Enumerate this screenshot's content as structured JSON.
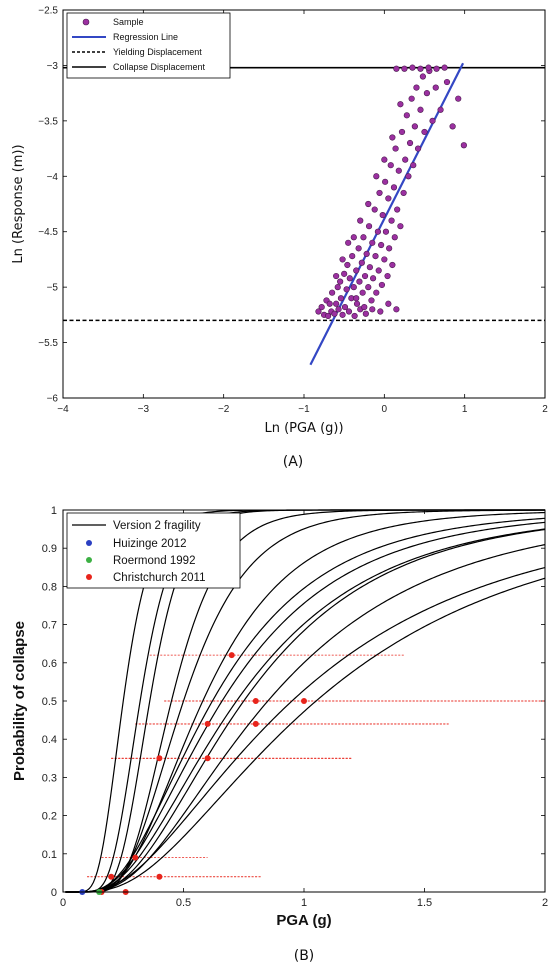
{
  "chart_data": [
    {
      "type": "scatter",
      "panel_label": "(A)",
      "xlabel": "Ln (PGA (g))",
      "ylabel": "Ln (Response (m))",
      "xlim": [
        -4,
        2
      ],
      "ylim": [
        -6,
        -2.5
      ],
      "xticks": [
        -4,
        -3,
        -2,
        -1,
        0,
        1,
        2
      ],
      "yticks": [
        -2.5,
        -3,
        -3.5,
        -4,
        -4.5,
        -5,
        -5.5,
        -6
      ],
      "legend": {
        "position": "top-left",
        "entries": [
          "Sample",
          "Regression Line",
          "Yielding Displacement",
          "Collapse Displacement"
        ]
      },
      "colors": {
        "sample": "#9b30a0",
        "regression": "#3347c4",
        "yield": "#000000",
        "collapse": "#000000"
      },
      "regression_line": {
        "x": [
          -0.92,
          0.98
        ],
        "y": [
          -5.7,
          -2.98
        ]
      },
      "yielding_displacement": -5.3,
      "collapse_displacement": -3.02,
      "samples": [
        [
          -0.82,
          -5.22
        ],
        [
          -0.78,
          -5.18
        ],
        [
          -0.75,
          -5.25
        ],
        [
          -0.72,
          -5.12
        ],
        [
          -0.7,
          -5.26
        ],
        [
          -0.68,
          -5.15
        ],
        [
          -0.66,
          -5.22
        ],
        [
          -0.65,
          -5.05
        ],
        [
          -0.62,
          -5.24
        ],
        [
          -0.6,
          -5.15
        ],
        [
          -0.58,
          -5.0
        ],
        [
          -0.57,
          -5.2
        ],
        [
          -0.55,
          -4.95
        ],
        [
          -0.54,
          -5.1
        ],
        [
          -0.52,
          -5.25
        ],
        [
          -0.5,
          -4.88
        ],
        [
          -0.49,
          -5.18
        ],
        [
          -0.47,
          -5.02
        ],
        [
          -0.46,
          -4.8
        ],
        [
          -0.44,
          -5.22
        ],
        [
          -0.43,
          -4.92
        ],
        [
          -0.41,
          -5.1
        ],
        [
          -0.4,
          -4.72
        ],
        [
          -0.38,
          -5.0
        ],
        [
          -0.37,
          -5.26
        ],
        [
          -0.35,
          -4.85
        ],
        [
          -0.34,
          -5.15
        ],
        [
          -0.32,
          -4.65
        ],
        [
          -0.31,
          -4.95
        ],
        [
          -0.3,
          -5.2
        ],
        [
          -0.28,
          -4.78
        ],
        [
          -0.27,
          -5.05
        ],
        [
          -0.26,
          -4.55
        ],
        [
          -0.24,
          -4.9
        ],
        [
          -0.23,
          -5.24
        ],
        [
          -0.22,
          -4.7
        ],
        [
          -0.2,
          -5.0
        ],
        [
          -0.19,
          -4.45
        ],
        [
          -0.18,
          -4.82
        ],
        [
          -0.16,
          -5.12
        ],
        [
          -0.15,
          -4.6
        ],
        [
          -0.14,
          -4.92
        ],
        [
          -0.12,
          -4.3
        ],
        [
          -0.11,
          -4.72
        ],
        [
          -0.1,
          -5.05
        ],
        [
          -0.08,
          -4.5
        ],
        [
          -0.07,
          -4.85
        ],
        [
          -0.06,
          -4.15
        ],
        [
          -0.04,
          -4.62
        ],
        [
          -0.03,
          -4.98
        ],
        [
          -0.02,
          -4.35
        ],
        [
          0.0,
          -4.75
        ],
        [
          0.01,
          -4.05
        ],
        [
          0.02,
          -4.5
        ],
        [
          0.04,
          -4.9
        ],
        [
          0.05,
          -4.2
        ],
        [
          0.06,
          -4.65
        ],
        [
          0.08,
          -3.9
        ],
        [
          0.09,
          -4.4
        ],
        [
          0.1,
          -4.8
        ],
        [
          0.12,
          -4.1
        ],
        [
          0.13,
          -4.55
        ],
        [
          0.14,
          -3.75
        ],
        [
          0.16,
          -4.3
        ],
        [
          0.18,
          -3.95
        ],
        [
          0.2,
          -4.45
        ],
        [
          0.22,
          -3.6
        ],
        [
          0.24,
          -4.15
        ],
        [
          0.26,
          -3.85
        ],
        [
          0.28,
          -3.45
        ],
        [
          0.3,
          -4.0
        ],
        [
          0.32,
          -3.7
        ],
        [
          0.34,
          -3.3
        ],
        [
          0.36,
          -3.9
        ],
        [
          0.38,
          -3.55
        ],
        [
          0.4,
          -3.2
        ],
        [
          0.42,
          -3.75
        ],
        [
          0.45,
          -3.4
        ],
        [
          0.48,
          -3.1
        ],
        [
          0.5,
          -3.6
        ],
        [
          0.53,
          -3.25
        ],
        [
          0.56,
          -3.05
        ],
        [
          0.6,
          -3.5
        ],
        [
          0.64,
          -3.2
        ],
        [
          0.7,
          -3.4
        ],
        [
          0.78,
          -3.15
        ],
        [
          0.85,
          -3.55
        ],
        [
          0.92,
          -3.3
        ],
        [
          0.99,
          -3.72
        ],
        [
          0.15,
          -3.03
        ],
        [
          0.25,
          -3.03
        ],
        [
          0.35,
          -3.02
        ],
        [
          0.45,
          -3.03
        ],
        [
          0.55,
          -3.02
        ],
        [
          0.65,
          -3.03
        ],
        [
          0.75,
          -3.02
        ],
        [
          -0.35,
          -5.1
        ],
        [
          -0.25,
          -5.18
        ],
        [
          -0.15,
          -5.2
        ],
        [
          -0.05,
          -5.22
        ],
        [
          0.05,
          -5.15
        ],
        [
          0.15,
          -5.2
        ],
        [
          -0.6,
          -4.9
        ],
        [
          -0.45,
          -4.6
        ],
        [
          -0.3,
          -4.4
        ],
        [
          -0.2,
          -4.25
        ],
        [
          -0.1,
          -4.0
        ],
        [
          0.0,
          -3.85
        ],
        [
          0.1,
          -3.65
        ],
        [
          0.2,
          -3.35
        ],
        [
          -0.52,
          -4.75
        ],
        [
          -0.38,
          -4.55
        ]
      ]
    },
    {
      "type": "line",
      "panel_label": "(B)",
      "xlabel": "PGA (g)",
      "ylabel": "Probability of collapse",
      "xlim": [
        0,
        2
      ],
      "ylim": [
        0,
        1
      ],
      "xticks": [
        0,
        0.5,
        1,
        1.5,
        2
      ],
      "yticks": [
        0,
        0.1,
        0.2,
        0.3,
        0.4,
        0.5,
        0.6,
        0.7,
        0.8,
        0.9,
        1
      ],
      "legend": {
        "position": "top-left",
        "entries": [
          "Version 2 fragility",
          "Huizinge 2012",
          "Roermond 1992",
          "Christchurch 2011"
        ]
      },
      "colors": {
        "fragility": "#000000",
        "huizinge": "#2b3fc2",
        "roermond": "#3cb043",
        "christchurch": "#e8241b",
        "range": "#e8241b"
      },
      "fragility_curves": [
        {
          "median": 0.25,
          "beta": 0.35
        },
        {
          "median": 0.32,
          "beta": 0.32
        },
        {
          "median": 0.36,
          "beta": 0.3
        },
        {
          "median": 0.45,
          "beta": 0.35
        },
        {
          "median": 0.5,
          "beta": 0.42
        },
        {
          "median": 0.58,
          "beta": 0.5
        },
        {
          "median": 0.66,
          "beta": 0.6
        },
        {
          "median": 0.62,
          "beta": 0.58
        },
        {
          "median": 0.72,
          "beta": 0.62
        },
        {
          "median": 0.75,
          "beta": 0.6
        },
        {
          "median": 0.85,
          "beta": 0.64
        },
        {
          "median": 0.95,
          "beta": 0.72
        },
        {
          "median": 1.05,
          "beta": 0.7
        }
      ],
      "huizinge_points": [
        [
          0.08,
          0.0
        ]
      ],
      "roermond_points": [
        [
          0.15,
          0.0
        ]
      ],
      "christchurch_points": [
        {
          "x": 0.7,
          "y": 0.62,
          "lo": 0.36,
          "hi": 1.42
        },
        {
          "x": 0.8,
          "y": 0.5,
          "lo": 0.42,
          "hi": 2.0
        },
        {
          "x": 1.0,
          "y": 0.5,
          "lo": 0.42,
          "hi": 2.0
        },
        {
          "x": 0.6,
          "y": 0.44,
          "lo": 0.3,
          "hi": 1.6
        },
        {
          "x": 0.8,
          "y": 0.44,
          "lo": 0.3,
          "hi": 1.6
        },
        {
          "x": 0.4,
          "y": 0.35,
          "lo": 0.2,
          "hi": 1.2
        },
        {
          "x": 0.6,
          "y": 0.35,
          "lo": 0.2,
          "hi": 1.2
        },
        {
          "x": 0.3,
          "y": 0.09,
          "lo": 0.16,
          "hi": 0.6
        },
        {
          "x": 0.2,
          "y": 0.04,
          "lo": 0.1,
          "hi": 0.82
        },
        {
          "x": 0.4,
          "y": 0.04,
          "lo": 0.1,
          "hi": 0.82
        },
        {
          "x": 0.16,
          "y": 0.0,
          "lo": 0.16,
          "hi": 0.16
        },
        {
          "x": 0.26,
          "y": 0.0,
          "lo": 0.26,
          "hi": 0.26
        }
      ]
    }
  ]
}
